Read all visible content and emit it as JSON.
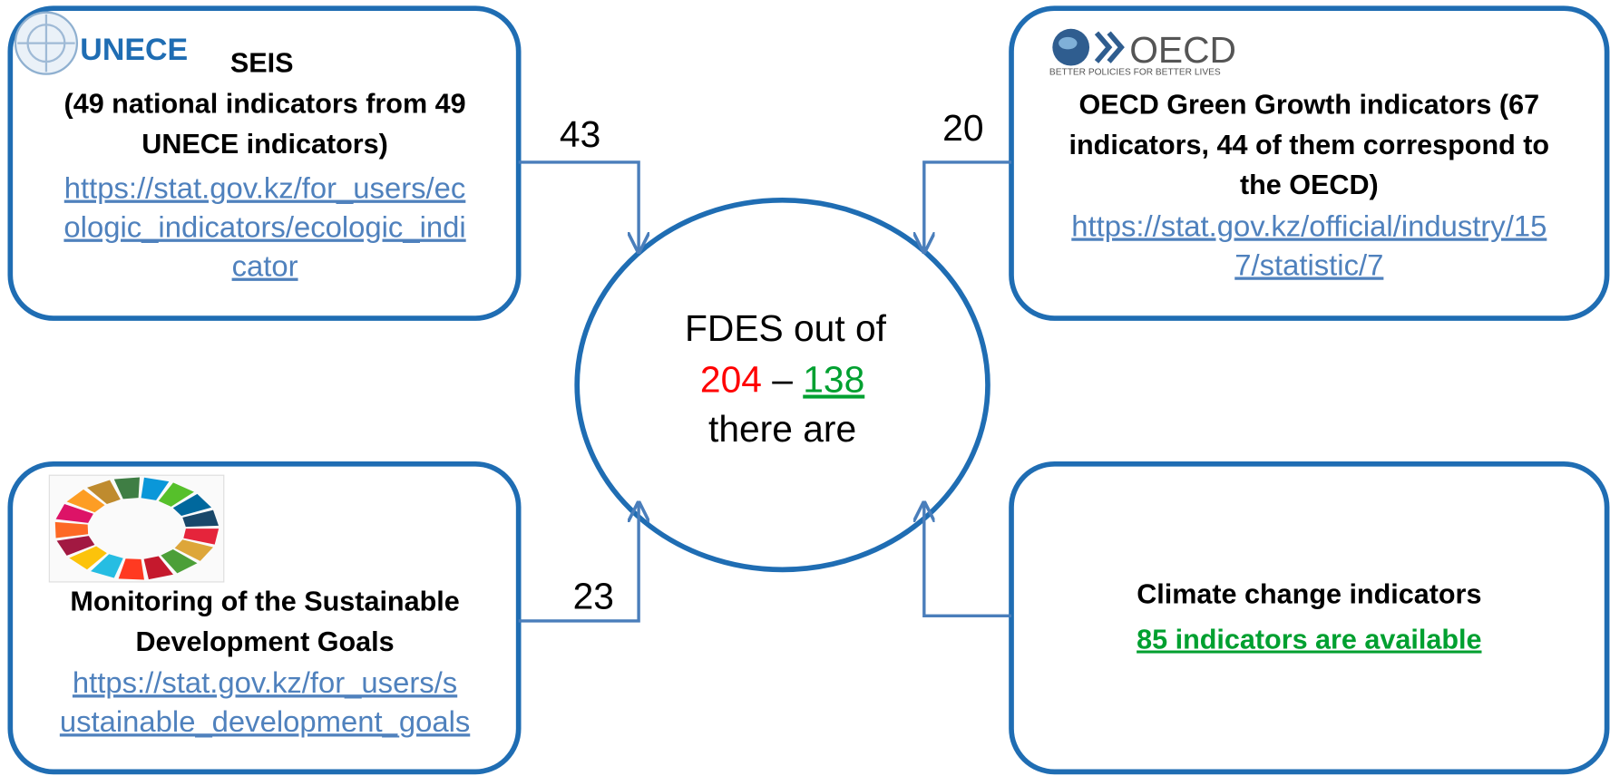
{
  "logos": {
    "unece": "UNECE",
    "oecd": "OECD",
    "oecd_tagline": "BETTER POLICIES FOR BETTER LIVES"
  },
  "nodes": [
    {
      "title": [
        "SEIS",
        "(49 national indicators from 49",
        "UNECE indicators)"
      ],
      "link": [
        "https://stat.gov.kz/for_users/ec",
        "ologic_indicators/ecologic_indi",
        "cator"
      ]
    },
    {
      "title": [
        "OECD Green Growth indicators (67",
        "indicators, 44 of them correspond to",
        "the OECD)"
      ],
      "link": [
        "https://stat.gov.kz/official/industry/15",
        "7/statistic/7"
      ]
    },
    {
      "title": [
        "Monitoring of the Sustainable",
        "Development Goals"
      ],
      "link": [
        "https://stat.gov.kz/for_users/s",
        "ustainable_development_goals"
      ]
    },
    {
      "title": [
        "Climate change indicators"
      ],
      "link": [
        "85 indicators are available"
      ]
    }
  ],
  "center": {
    "line1": "FDES out of",
    "total": "204",
    "dash": "–",
    "available": "138",
    "line3": "there are"
  },
  "edges": [
    {
      "label": "43"
    },
    {
      "label": "20"
    },
    {
      "label": "23"
    }
  ]
}
